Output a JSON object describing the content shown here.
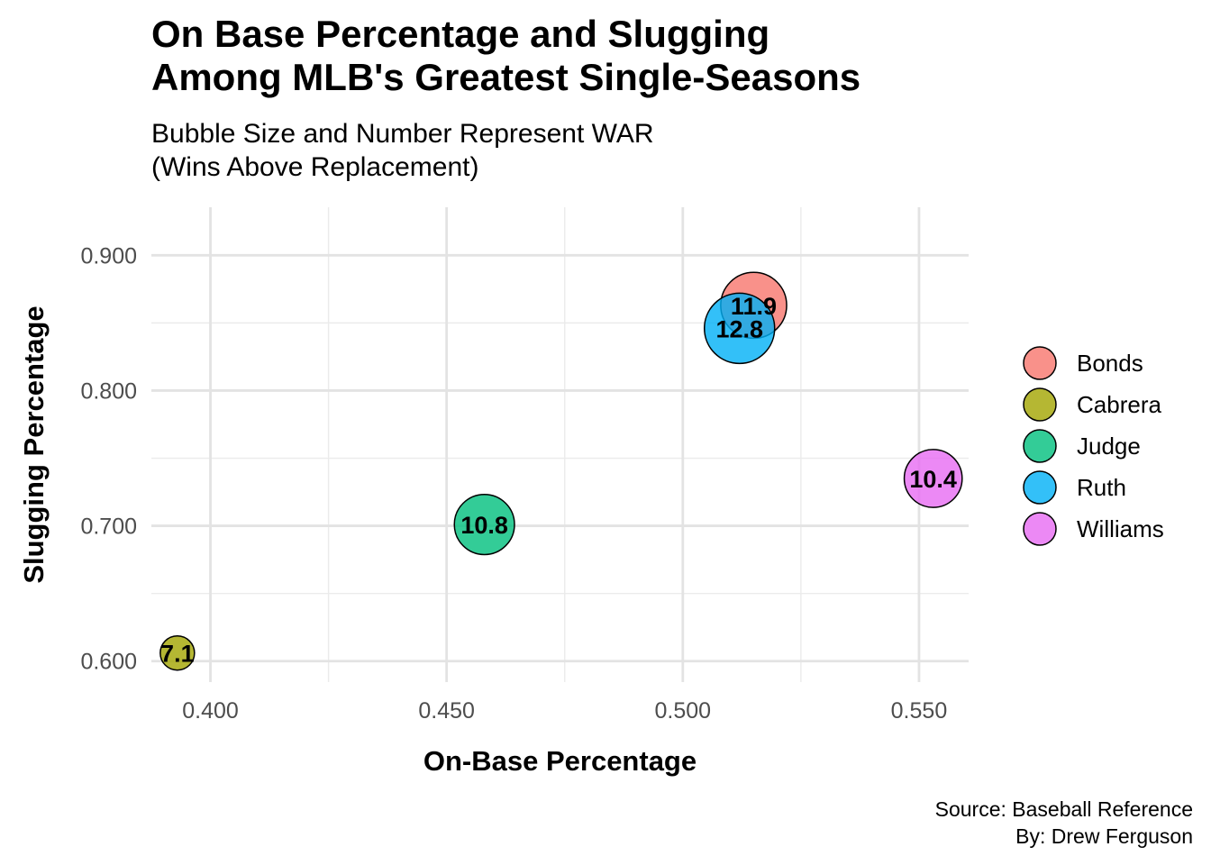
{
  "chart_data": {
    "type": "scatter",
    "title": [
      "On Base Percentage and Slugging",
      "Among MLB's Greatest Single-Seasons"
    ],
    "subtitle": [
      "Bubble Size and Number Represent WAR",
      "(Wins Above Replacement)"
    ],
    "xlabel": "On-Base Percentage",
    "ylabel": "Slugging Percentage",
    "xlim": [
      0.3875,
      0.5605
    ],
    "ylim": [
      0.5845,
      0.9355
    ],
    "x_ticks": [
      0.4,
      0.45,
      0.5,
      0.55
    ],
    "x_tick_labels": [
      "0.400",
      "0.450",
      "0.500",
      "0.550"
    ],
    "y_ticks": [
      0.6,
      0.7,
      0.8,
      0.9
    ],
    "y_tick_labels": [
      "0.600",
      "0.700",
      "0.800",
      "0.900"
    ],
    "grid": true,
    "legend_position": "right",
    "series": [
      {
        "name": "Bonds",
        "color": "#F8766D",
        "x": 0.515,
        "y": 0.863,
        "war": 11.9,
        "label": "11.9"
      },
      {
        "name": "Cabrera",
        "color": "#A3A500",
        "x": 0.393,
        "y": 0.606,
        "war": 7.1,
        "label": "7.1"
      },
      {
        "name": "Judge",
        "color": "#00BF7D",
        "x": 0.458,
        "y": 0.701,
        "war": 10.8,
        "label": "10.8"
      },
      {
        "name": "Ruth",
        "color": "#00B0F6",
        "x": 0.512,
        "y": 0.846,
        "war": 12.8,
        "label": "12.8"
      },
      {
        "name": "Williams",
        "color": "#E76BF3",
        "x": 0.553,
        "y": 0.735,
        "war": 10.4,
        "label": "10.4"
      }
    ],
    "caption": [
      "Source: Baseball Reference",
      "By: Drew Ferguson"
    ]
  }
}
